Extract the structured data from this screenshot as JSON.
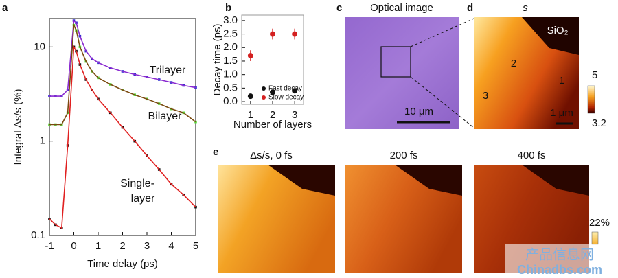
{
  "chart_data": [
    {
      "type": "line",
      "panel_label": "a",
      "xlabel": "Time delay (ps)",
      "ylabel": "Integral Δs/s (%)",
      "log_y": true,
      "xlim": [
        -1,
        5
      ],
      "ylim": [
        0.1,
        20
      ],
      "xticks": [
        -1,
        0,
        1,
        2,
        3,
        4,
        5
      ],
      "yticks": [
        0.1,
        1,
        10
      ],
      "x": [
        -1,
        -0.75,
        -0.5,
        -0.25,
        0,
        0.1,
        0.25,
        0.5,
        0.75,
        1,
        1.5,
        2,
        2.5,
        3,
        3.5,
        4,
        4.5,
        5
      ],
      "series": [
        {
          "color": "#3030d0",
          "line_color": "#8a2ad0",
          "values": [
            3.0,
            3.0,
            3.0,
            3.5,
            19,
            18,
            13,
            9,
            7.5,
            6.8,
            6,
            5.5,
            5.1,
            4.8,
            4.5,
            4.2,
            3.9,
            3.7
          ]
        },
        {
          "color": "#5adc3c",
          "line_color": "#7a4a10",
          "values": [
            1.5,
            1.5,
            1.5,
            2.0,
            17,
            15,
            10,
            7,
            5.5,
            4.7,
            4,
            3.5,
            3.1,
            2.8,
            2.5,
            2.2,
            2,
            1.6
          ]
        },
        {
          "color": "#111111",
          "line_color": "#e02020",
          "values": [
            0.15,
            0.13,
            0.12,
            0.9,
            10,
            9,
            6.5,
            4.5,
            3.5,
            2.8,
            2,
            1.4,
            1,
            0.7,
            0.5,
            0.35,
            0.27,
            0.2
          ]
        }
      ],
      "annotations": [
        "Trilayer",
        "Bilayer",
        "Single-",
        "layer"
      ]
    },
    {
      "type": "scatter",
      "panel_label": "b",
      "xlabel": "Number of layers",
      "ylabel": "Decay time (ps)",
      "xlim": [
        0.6,
        3.4
      ],
      "ylim": [
        -0.1,
        3.2
      ],
      "xticks": [
        1,
        2,
        3
      ],
      "yticks": [
        {
          "value": 0,
          "label": "0.0"
        },
        0.5,
        {
          "value": 1,
          "label": "1.0"
        },
        1.5,
        {
          "value": 2,
          "label": "2.0"
        },
        2.5,
        {
          "value": 3,
          "label": "3.0"
        }
      ],
      "x": [
        1,
        2,
        3
      ],
      "series": [
        {
          "name": "Fast decay",
          "color": "#111111",
          "values": [
            0.2,
            0.35,
            0.4
          ]
        },
        {
          "name": "Slow decay",
          "color": "#d42020",
          "values": [
            1.7,
            2.5,
            2.5
          ],
          "errors": [
            0.2,
            0.2,
            0.2
          ]
        }
      ],
      "legend": "lower right"
    }
  ],
  "images": {
    "c": {
      "panel_label": "c",
      "title": "Optical image",
      "scale_bar": "10 μm"
    },
    "d": {
      "panel_label": "d",
      "title": "s",
      "material": "SiO₂",
      "regions": [
        "1",
        "2",
        "3"
      ],
      "scale_bar": "1 μm",
      "colorbar": [
        "5",
        "3.2"
      ]
    },
    "e": {
      "panel_label": "e",
      "titles": [
        "Δs/s, 0 fs",
        "200 fs",
        "400 fs"
      ],
      "colorbar": "22%"
    }
  },
  "watermark": [
    "产品信息网",
    "Chinadbs.com"
  ]
}
